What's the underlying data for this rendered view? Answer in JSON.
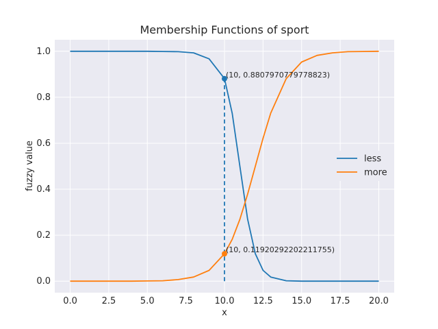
{
  "chart_data": {
    "type": "line",
    "title": "Membership Functions of sport",
    "xlabel": "x",
    "ylabel": "fuzzy value",
    "xlim": [
      -1.0,
      21.0
    ],
    "ylim": [
      -0.05,
      1.05
    ],
    "x_ticks": [
      "0.0",
      "2.5",
      "5.0",
      "7.5",
      "10.0",
      "12.5",
      "15.0",
      "17.5",
      "20.0"
    ],
    "y_ticks": [
      "0.0",
      "0.2",
      "0.4",
      "0.6",
      "0.8",
      "1.0"
    ],
    "grid": true,
    "legend_position": "center-right",
    "x": [
      0,
      1,
      2,
      3,
      4,
      5,
      6,
      7,
      8,
      9,
      10,
      10.5,
      11,
      11.5,
      12,
      12.5,
      13,
      14,
      15,
      16,
      17,
      18,
      19,
      20
    ],
    "series": [
      {
        "name": "less",
        "color": "#1f77b4",
        "values": [
          1.0,
          1.0,
          1.0,
          1.0,
          1.0,
          1.0,
          0.999,
          0.998,
          0.993,
          0.967,
          0.881,
          0.73,
          0.5,
          0.27,
          0.119,
          0.047,
          0.018,
          0.002,
          0.0,
          0.0,
          0.0,
          0.0,
          0.0,
          0.0
        ]
      },
      {
        "name": "more",
        "color": "#ff7f0e",
        "values": [
          0.0,
          0.0,
          0.0,
          0.0,
          0.0,
          0.001,
          0.002,
          0.007,
          0.018,
          0.047,
          0.119,
          0.182,
          0.269,
          0.378,
          0.5,
          0.622,
          0.731,
          0.881,
          0.953,
          0.982,
          0.993,
          0.998,
          0.999,
          1.0
        ]
      }
    ],
    "annotations": [
      {
        "x": 10,
        "y": 0.8807970779778823,
        "text": "(10, 0.8807970779778823)",
        "color": "#1f77b4"
      },
      {
        "x": 10,
        "y": 0.11920292202211755,
        "text": "(10, 0.11920292202211755)",
        "color": "#ff7f0e"
      }
    ],
    "vline": {
      "x": 10,
      "y_from": 0.0,
      "y_to": 0.8807970779778823,
      "style": "dashed",
      "color": "#1f77b4"
    }
  }
}
